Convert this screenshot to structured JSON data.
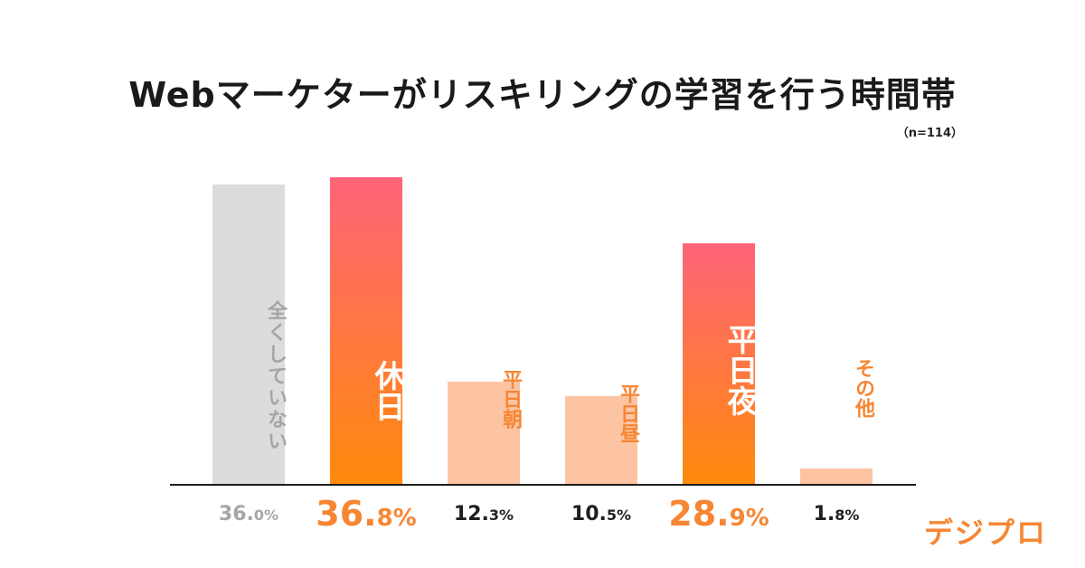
{
  "chart_data": {
    "type": "bar",
    "title": "Webマーケターがリスキリングの学習を行う時間帯",
    "sample_size": "（n=114）",
    "xlabel": "",
    "ylabel": "",
    "ylim": [
      0,
      40
    ],
    "categories": [
      "全くしていない",
      "休日",
      "平日朝",
      "平日昼",
      "平日夜",
      "その他"
    ],
    "values": [
      36.0,
      36.8,
      12.3,
      10.5,
      28.9,
      1.8
    ],
    "value_labels": [
      {
        "int": "36.",
        "dec": "0%"
      },
      {
        "int": "36.",
        "dec": "8%"
      },
      {
        "int": "12.",
        "dec": "3%"
      },
      {
        "int": "10.",
        "dec": "5%"
      },
      {
        "int": "28.",
        "dec": "9%"
      },
      {
        "int": "1.",
        "dec": "8%"
      }
    ],
    "styles": [
      "gray",
      "gradient",
      "light",
      "light",
      "gradient",
      "light"
    ]
  },
  "colors": {
    "gray_bar": "#dcdcdc",
    "gray_text": "#a6a6a6",
    "gradient_top": "#ff6478",
    "gradient_bottom": "#ff8a0c",
    "light_bar": "#fcc4a3",
    "orange_text": "#f68634",
    "dark_text": "#1f1f1f",
    "logo_color": "#f68634"
  },
  "brand": {
    "logo_text": "デジプロ"
  }
}
